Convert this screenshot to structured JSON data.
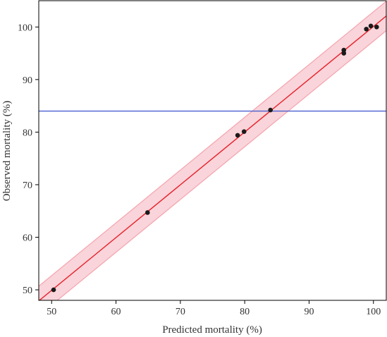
{
  "chart_data": {
    "type": "scatter",
    "xlabel": "Predicted mortality (%)",
    "ylabel": "Observed mortality (%)",
    "xlim": [
      48,
      102
    ],
    "ylim": [
      48,
      105
    ],
    "x_ticks": [
      50,
      60,
      70,
      80,
      90,
      100
    ],
    "y_ticks": [
      50,
      60,
      70,
      80,
      90,
      100
    ],
    "points": [
      {
        "x": 50.3,
        "y": 50.0
      },
      {
        "x": 64.9,
        "y": 64.7
      },
      {
        "x": 78.9,
        "y": 79.4
      },
      {
        "x": 79.9,
        "y": 80.1
      },
      {
        "x": 84.0,
        "y": 84.2
      },
      {
        "x": 95.4,
        "y": 95.0
      },
      {
        "x": 95.4,
        "y": 95.6
      },
      {
        "x": 98.9,
        "y": 99.6
      },
      {
        "x": 99.6,
        "y": 100.2
      },
      {
        "x": 100.5,
        "y": 100.0
      }
    ],
    "fit_line": {
      "from": [
        48,
        47.9
      ],
      "to": [
        102,
        102.1
      ],
      "color": "#e8202a"
    },
    "confidence_band": {
      "half_width": 2.8,
      "fill": "#f7c5cd",
      "edge": "#f4a3ad"
    },
    "mean_line": {
      "y": 84.0,
      "color": "#4a5fd0"
    },
    "point_color": "#1a1a1a",
    "grid": false
  }
}
